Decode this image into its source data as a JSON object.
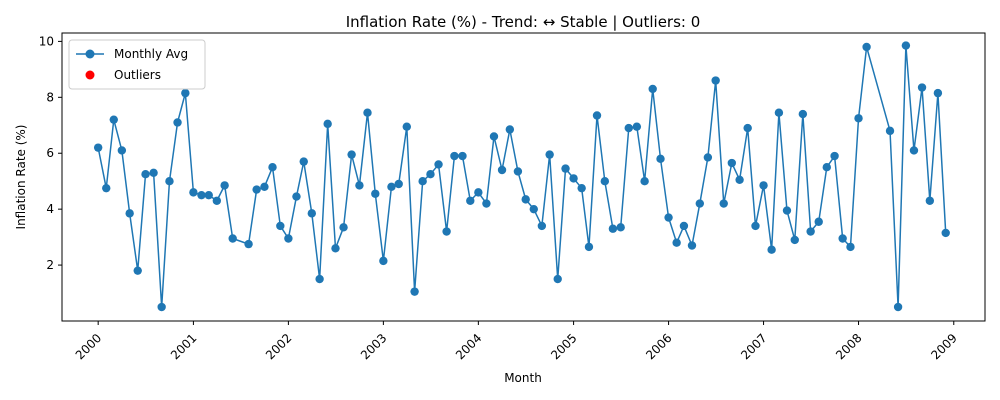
{
  "chart_data": {
    "type": "line",
    "title": "Inflation Rate (%) - Trend: ↔ Stable | Outliers: 0",
    "xlabel": "Month",
    "ylabel": "Inflation Rate (%)",
    "x_range": [
      "1999-08-15",
      "2009-05-01"
    ],
    "ylim": [
      0.0,
      10.3
    ],
    "y_ticks": [
      2,
      4,
      6,
      8,
      10
    ],
    "x_ticks": [
      "2000-01-01",
      "2001-01-01",
      "2002-01-01",
      "2003-01-01",
      "2004-01-01",
      "2005-01-01",
      "2006-01-01",
      "2007-01-01",
      "2008-01-01",
      "2009-01-01"
    ],
    "x_tick_labels": [
      "2000",
      "2001",
      "2002",
      "2003",
      "2004",
      "2005",
      "2006",
      "2007",
      "2008",
      "2009"
    ],
    "grid": false,
    "legend": {
      "position": "top-left",
      "entries": [
        "Monthly Avg",
        "Outliers"
      ]
    },
    "colors": {
      "series": "#1f77b4",
      "outliers": "#ff0000"
    },
    "series": [
      {
        "name": "Monthly Avg",
        "points": [
          [
            "2000-01-01",
            6.2
          ],
          [
            "2000-02-01",
            4.75
          ],
          [
            "2000-03-01",
            7.2
          ],
          [
            "2000-04-01",
            6.1
          ],
          [
            "2000-05-01",
            3.85
          ],
          [
            "2000-06-01",
            1.8
          ],
          [
            "2000-07-01",
            5.25
          ],
          [
            "2000-08-01",
            5.3
          ],
          [
            "2000-09-01",
            0.5
          ],
          [
            "2000-10-01",
            5.0
          ],
          [
            "2000-11-01",
            7.1
          ],
          [
            "2000-12-01",
            8.15
          ],
          [
            "2001-01-01",
            4.6
          ],
          [
            "2001-02-01",
            4.5
          ],
          [
            "2001-03-01",
            4.5
          ],
          [
            "2001-04-01",
            4.3
          ],
          [
            "2001-05-01",
            4.85
          ],
          [
            "2001-06-01",
            2.95
          ],
          [
            "2001-08-01",
            2.75
          ],
          [
            "2001-09-01",
            4.7
          ],
          [
            "2001-10-01",
            4.8
          ],
          [
            "2001-11-01",
            5.5
          ],
          [
            "2001-12-01",
            3.4
          ],
          [
            "2002-01-01",
            2.95
          ],
          [
            "2002-02-01",
            4.45
          ],
          [
            "2002-03-01",
            5.7
          ],
          [
            "2002-04-01",
            3.85
          ],
          [
            "2002-05-01",
            1.5
          ],
          [
            "2002-06-01",
            7.05
          ],
          [
            "2002-07-01",
            2.6
          ],
          [
            "2002-08-01",
            3.35
          ],
          [
            "2002-09-01",
            5.95
          ],
          [
            "2002-10-01",
            4.85
          ],
          [
            "2002-11-01",
            7.45
          ],
          [
            "2002-12-01",
            4.55
          ],
          [
            "2003-01-01",
            2.15
          ],
          [
            "2003-02-01",
            4.8
          ],
          [
            "2003-03-01",
            4.9
          ],
          [
            "2003-04-01",
            6.95
          ],
          [
            "2003-05-01",
            1.05
          ],
          [
            "2003-06-01",
            5.0
          ],
          [
            "2003-07-01",
            5.25
          ],
          [
            "2003-08-01",
            5.6
          ],
          [
            "2003-09-01",
            3.2
          ],
          [
            "2003-10-01",
            5.9
          ],
          [
            "2003-11-01",
            5.9
          ],
          [
            "2003-12-01",
            4.3
          ],
          [
            "2004-01-01",
            4.6
          ],
          [
            "2004-02-01",
            4.2
          ],
          [
            "2004-03-01",
            6.6
          ],
          [
            "2004-04-01",
            5.4
          ],
          [
            "2004-05-01",
            6.85
          ],
          [
            "2004-06-01",
            5.35
          ],
          [
            "2004-07-01",
            4.35
          ],
          [
            "2004-08-01",
            4.0
          ],
          [
            "2004-09-01",
            3.4
          ],
          [
            "2004-10-01",
            5.95
          ],
          [
            "2004-11-01",
            1.5
          ],
          [
            "2004-12-01",
            5.45
          ],
          [
            "2005-01-01",
            5.1
          ],
          [
            "2005-02-01",
            4.75
          ],
          [
            "2005-03-01",
            2.65
          ],
          [
            "2005-04-01",
            7.35
          ],
          [
            "2005-05-01",
            5.0
          ],
          [
            "2005-06-01",
            3.3
          ],
          [
            "2005-07-01",
            3.35
          ],
          [
            "2005-08-01",
            6.9
          ],
          [
            "2005-09-01",
            6.95
          ],
          [
            "2005-10-01",
            5.0
          ],
          [
            "2005-11-01",
            8.3
          ],
          [
            "2005-12-01",
            5.8
          ],
          [
            "2006-01-01",
            3.7
          ],
          [
            "2006-02-01",
            2.8
          ],
          [
            "2006-03-01",
            3.4
          ],
          [
            "2006-04-01",
            2.7
          ],
          [
            "2006-05-01",
            4.2
          ],
          [
            "2006-06-01",
            5.85
          ],
          [
            "2006-07-01",
            8.6
          ],
          [
            "2006-08-01",
            4.2
          ],
          [
            "2006-09-01",
            5.65
          ],
          [
            "2006-10-01",
            5.05
          ],
          [
            "2006-11-01",
            6.9
          ],
          [
            "2006-12-01",
            3.4
          ],
          [
            "2007-01-01",
            4.85
          ],
          [
            "2007-02-01",
            2.55
          ],
          [
            "2007-03-01",
            7.45
          ],
          [
            "2007-04-01",
            3.95
          ],
          [
            "2007-05-01",
            2.9
          ],
          [
            "2007-06-01",
            7.4
          ],
          [
            "2007-07-01",
            3.2
          ],
          [
            "2007-08-01",
            3.55
          ],
          [
            "2007-09-01",
            5.5
          ],
          [
            "2007-10-01",
            5.9
          ],
          [
            "2007-11-01",
            2.95
          ],
          [
            "2007-12-01",
            2.65
          ],
          [
            "2008-01-01",
            7.25
          ],
          [
            "2008-02-01",
            9.8
          ],
          [
            "2008-05-01",
            6.8
          ],
          [
            "2008-06-01",
            0.5
          ],
          [
            "2008-07-01",
            9.85
          ],
          [
            "2008-08-01",
            6.1
          ],
          [
            "2008-09-01",
            8.35
          ],
          [
            "2008-10-01",
            4.3
          ],
          [
            "2008-11-01",
            8.15
          ],
          [
            "2008-12-01",
            3.15
          ]
        ]
      },
      {
        "name": "Outliers",
        "points": []
      }
    ]
  }
}
